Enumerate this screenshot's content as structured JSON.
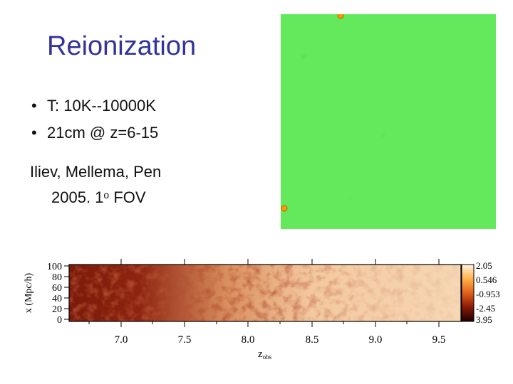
{
  "slide": {
    "title": "Reionization",
    "bullets": [
      "T: 10K--10000K",
      "21cm @ z=6-15"
    ],
    "credit_line1": "Iliev, Mellema, Pen",
    "credit_line2_prefix": "2005. 1",
    "credit_superscript": "o",
    "credit_line2_suffix": " FOV"
  },
  "plot": {
    "ylabel": "x (Mpc/h)",
    "yticks": [
      "100",
      "80",
      "60",
      "40",
      "20",
      "0"
    ],
    "xticks": [
      "7.0",
      "7.5",
      "8.0",
      "8.5",
      "9.0",
      "9.5"
    ],
    "xlabel": "z",
    "xlabel_sub": "obs",
    "colorbar_labels": [
      "2.05",
      "0.546",
      "-0.953",
      "-2.45",
      "3.95"
    ]
  },
  "colors": {
    "title": "#333399",
    "sim_green": "#2ea52e",
    "sim_light": "#5cd65c",
    "source_orange": "#ff9900",
    "neutral_dark": "#7a1a0a",
    "ionized_light": "#f4c9a0"
  }
}
